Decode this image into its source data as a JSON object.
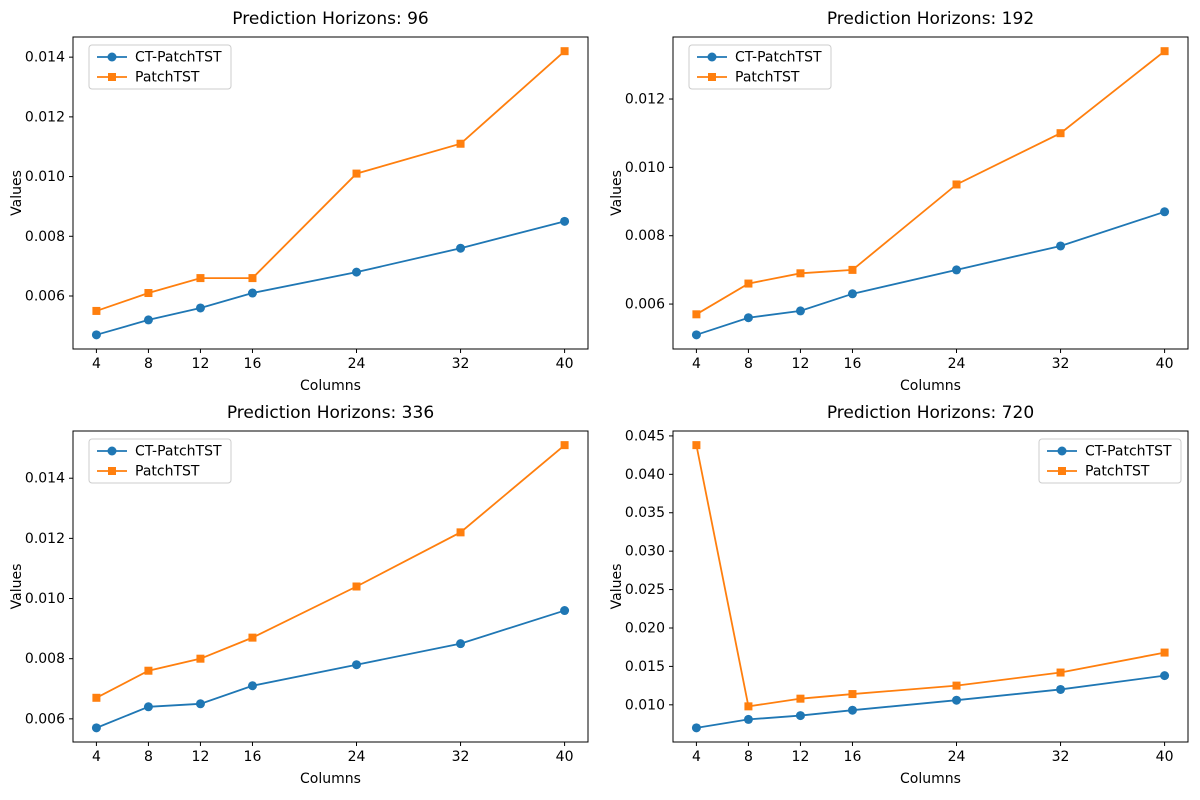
{
  "figure": {
    "background": "#ffffff",
    "text_color": "#000000",
    "spine_color": "#000000",
    "legend_border_color": "#cccccc",
    "legend_bg_color": "#ffffff"
  },
  "chart_data": [
    {
      "type": "line",
      "title": "Prediction Horizons: 96",
      "xlabel": "Columns",
      "ylabel": "Values",
      "x": [
        4,
        8,
        12,
        16,
        24,
        32,
        40
      ],
      "xtick_labels": [
        "4",
        "8",
        "12",
        "16",
        "24",
        "32",
        "40"
      ],
      "ytick_values": [
        0.006,
        0.008,
        0.01,
        0.012,
        0.014
      ],
      "ytick_labels": [
        "0.006",
        "0.008",
        "0.010",
        "0.012",
        "0.014"
      ],
      "xlim": [
        2.2,
        41.8
      ],
      "ylim": [
        0.004225,
        0.014675
      ],
      "grid": false,
      "legend_loc": "upper left",
      "series": [
        {
          "name": "CT-PatchTST",
          "color": "#1f77b4",
          "marker": "circle",
          "values": [
            0.0047,
            0.0052,
            0.0056,
            0.0061,
            0.0068,
            0.0076,
            0.0085
          ]
        },
        {
          "name": "PatchTST",
          "color": "#ff7f0e",
          "marker": "square",
          "values": [
            0.0055,
            0.0061,
            0.0066,
            0.0066,
            0.0101,
            0.0111,
            0.0142
          ]
        }
      ]
    },
    {
      "type": "line",
      "title": "Prediction Horizons: 192",
      "xlabel": "Columns",
      "ylabel": "Values",
      "x": [
        4,
        8,
        12,
        16,
        24,
        32,
        40
      ],
      "xtick_labels": [
        "4",
        "8",
        "12",
        "16",
        "24",
        "32",
        "40"
      ],
      "ytick_values": [
        0.006,
        0.008,
        0.01,
        0.012
      ],
      "ytick_labels": [
        "0.006",
        "0.008",
        "0.010",
        "0.012"
      ],
      "xlim": [
        2.2,
        41.8
      ],
      "ylim": [
        0.004685,
        0.013815
      ],
      "grid": false,
      "legend_loc": "upper left",
      "series": [
        {
          "name": "CT-PatchTST",
          "color": "#1f77b4",
          "marker": "circle",
          "values": [
            0.0051,
            0.0056,
            0.0058,
            0.0063,
            0.007,
            0.0077,
            0.0087
          ]
        },
        {
          "name": "PatchTST",
          "color": "#ff7f0e",
          "marker": "square",
          "values": [
            0.0057,
            0.0066,
            0.0069,
            0.007,
            0.0095,
            0.011,
            0.0134
          ]
        }
      ]
    },
    {
      "type": "line",
      "title": "Prediction Horizons: 336",
      "xlabel": "Columns",
      "ylabel": "Values",
      "x": [
        4,
        8,
        12,
        16,
        24,
        32,
        40
      ],
      "xtick_labels": [
        "4",
        "8",
        "12",
        "16",
        "24",
        "32",
        "40"
      ],
      "ytick_values": [
        0.006,
        0.008,
        0.01,
        0.012,
        0.014
      ],
      "ytick_labels": [
        "0.006",
        "0.008",
        "0.010",
        "0.012",
        "0.014"
      ],
      "xlim": [
        2.2,
        41.8
      ],
      "ylim": [
        0.00523,
        0.01557
      ],
      "grid": false,
      "legend_loc": "upper left",
      "series": [
        {
          "name": "CT-PatchTST",
          "color": "#1f77b4",
          "marker": "circle",
          "values": [
            0.0057,
            0.0064,
            0.0065,
            0.0071,
            0.0078,
            0.0085,
            0.0096
          ]
        },
        {
          "name": "PatchTST",
          "color": "#ff7f0e",
          "marker": "square",
          "values": [
            0.0067,
            0.0076,
            0.008,
            0.0087,
            0.0104,
            0.0122,
            0.0151
          ]
        }
      ]
    },
    {
      "type": "line",
      "title": "Prediction Horizons: 720",
      "xlabel": "Columns",
      "ylabel": "Values",
      "x": [
        4,
        8,
        12,
        16,
        24,
        32,
        40
      ],
      "xtick_labels": [
        "4",
        "8",
        "12",
        "16",
        "24",
        "32",
        "40"
      ],
      "ytick_values": [
        0.01,
        0.015,
        0.02,
        0.025,
        0.03,
        0.035,
        0.04,
        0.045
      ],
      "ytick_labels": [
        "0.010",
        "0.015",
        "0.020",
        "0.025",
        "0.030",
        "0.035",
        "0.040",
        "0.045"
      ],
      "xlim": [
        2.2,
        41.8
      ],
      "ylim": [
        0.00516,
        0.04564
      ],
      "grid": false,
      "legend_loc": "upper right",
      "series": [
        {
          "name": "CT-PatchTST",
          "color": "#1f77b4",
          "marker": "circle",
          "values": [
            0.007,
            0.0081,
            0.0086,
            0.0093,
            0.0106,
            0.012,
            0.0138
          ]
        },
        {
          "name": "PatchTST",
          "color": "#ff7f0e",
          "marker": "square",
          "values": [
            0.0438,
            0.0098,
            0.0108,
            0.0114,
            0.0125,
            0.0142,
            0.0168
          ]
        }
      ]
    }
  ]
}
